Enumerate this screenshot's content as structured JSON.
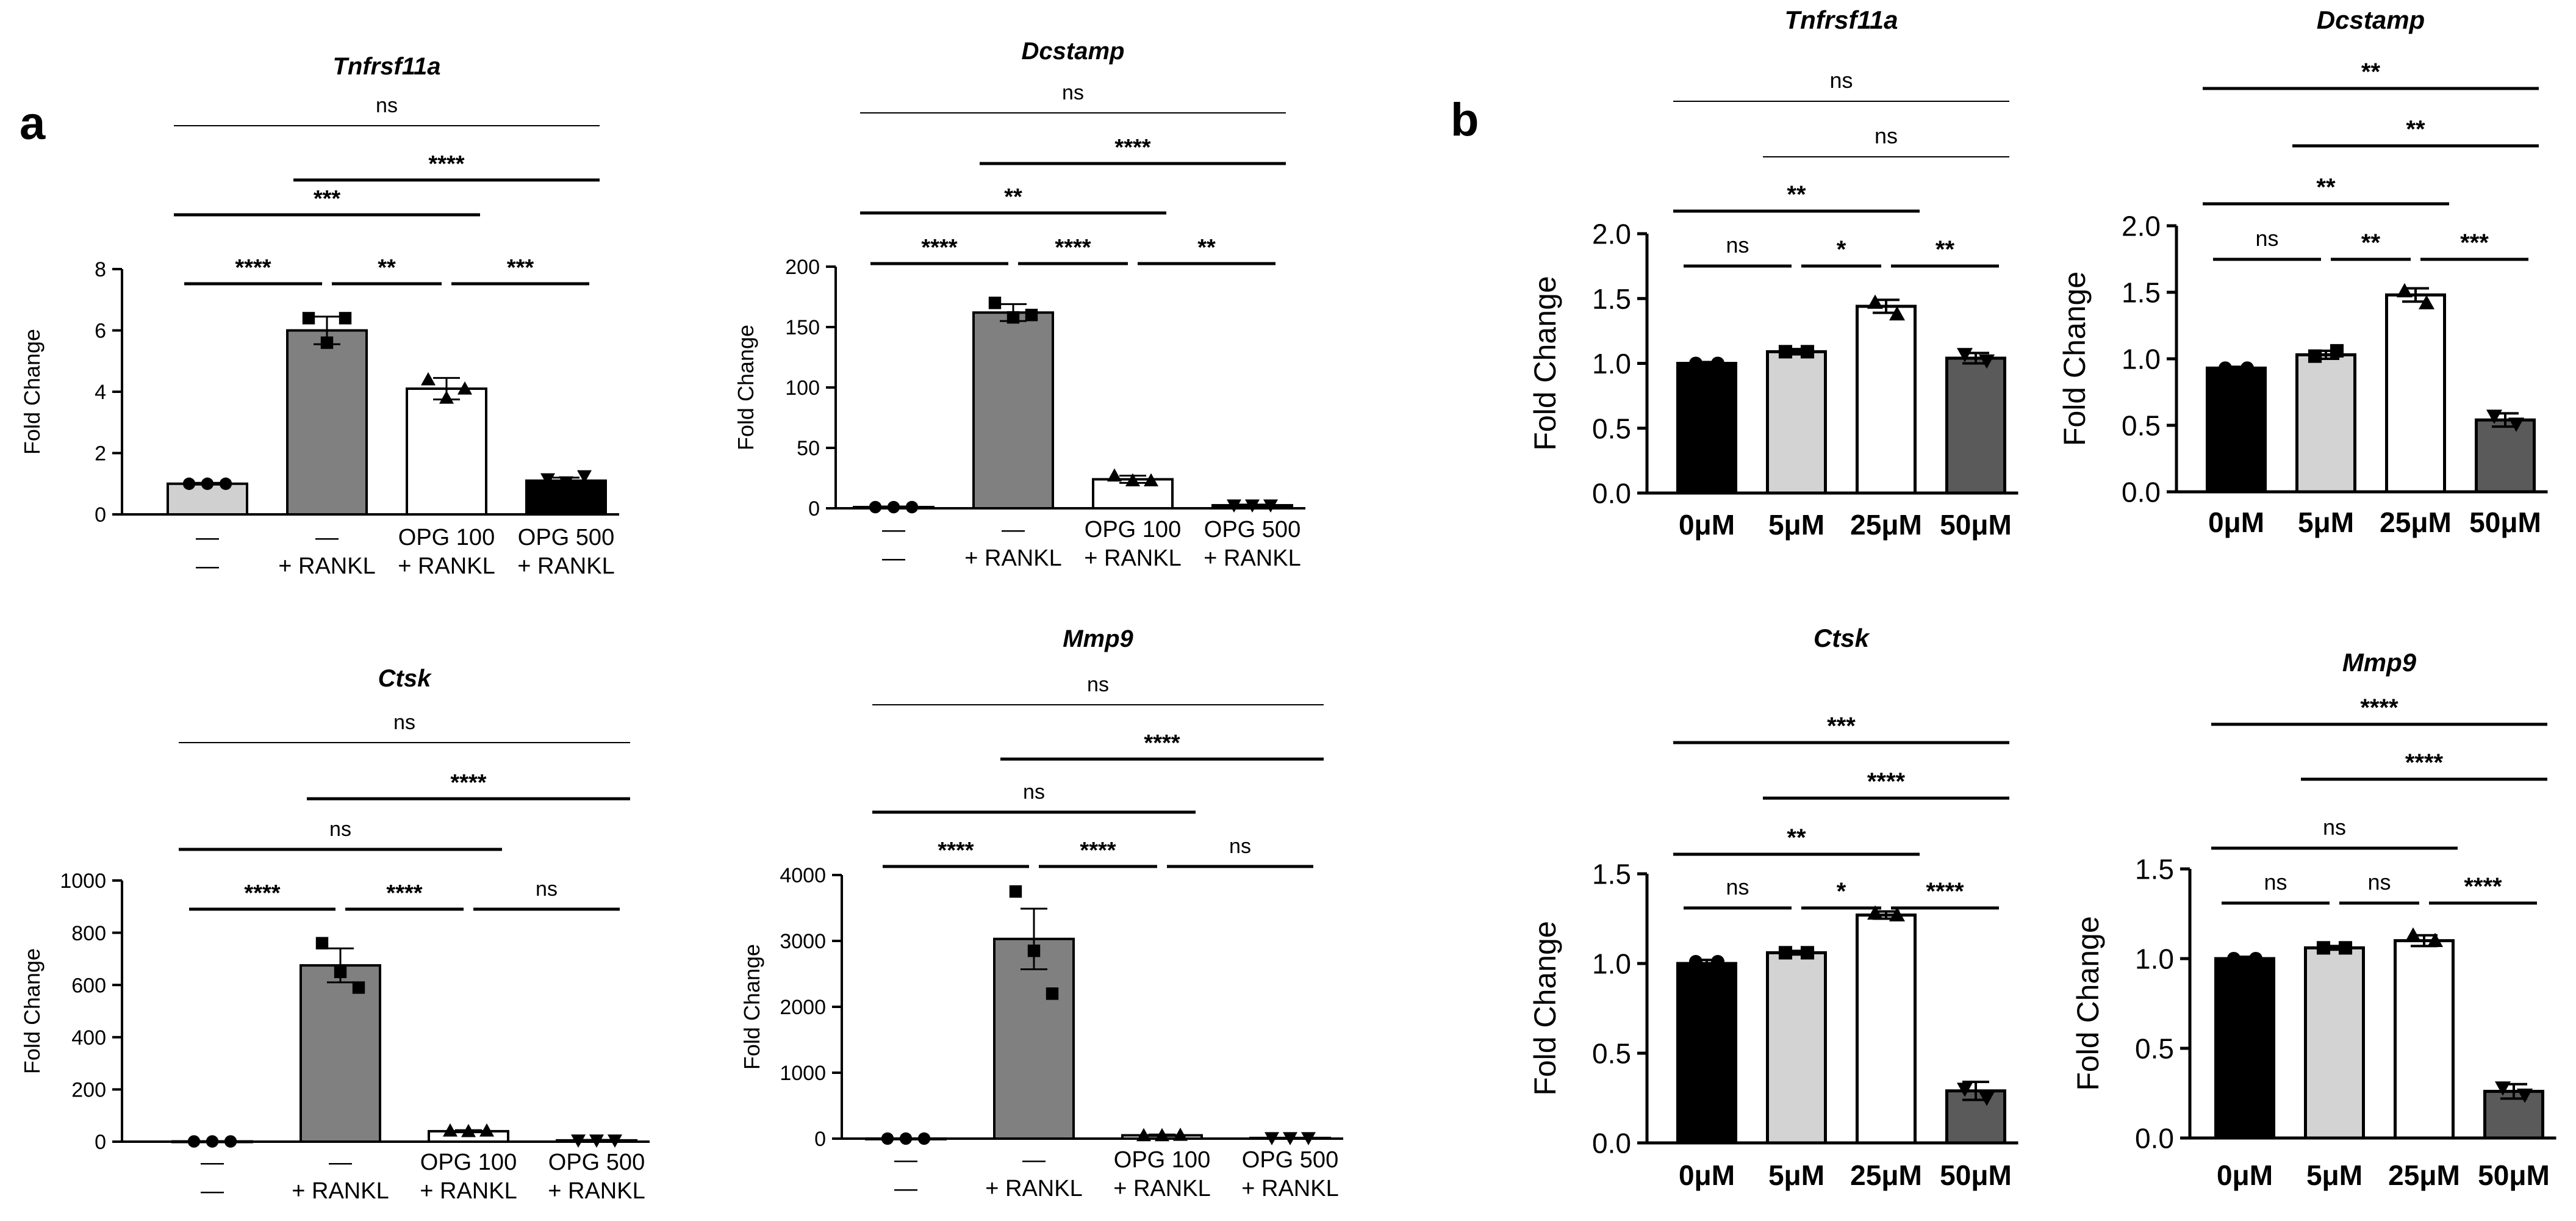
{
  "panel_labels": [
    "a",
    "b"
  ],
  "chart_data": [
    {
      "panel": "a",
      "type": "bar",
      "title": "Tnfrsf11a",
      "ylabel": "Fold Change",
      "ylim": [
        0,
        8
      ],
      "yticks": [
        "0",
        "2",
        "4",
        "6",
        "8"
      ],
      "categories": [
        [
          "—",
          "—"
        ],
        [
          "—",
          "+ RANKL"
        ],
        [
          "OPG 100",
          "+ RANKL"
        ],
        [
          "OPG 500",
          "+ RANKL"
        ]
      ],
      "values": [
        1.0,
        6.0,
        4.1,
        1.1
      ],
      "errors": [
        0.03,
        0.45,
        0.35,
        0.1
      ],
      "points": [
        [
          1.0,
          1.0,
          1.0
        ],
        [
          6.4,
          5.6,
          6.4
        ],
        [
          4.4,
          3.8,
          4.1
        ],
        [
          1.15,
          1.05,
          1.25
        ]
      ],
      "markers": [
        "circle",
        "square",
        "triangle",
        "triangle-down"
      ],
      "colors": [
        "#d0d0d0",
        "#808080",
        "#ffffff",
        "#000000"
      ],
      "comparisons": [
        {
          "from": 0,
          "to": 1,
          "label": "****"
        },
        {
          "from": 1,
          "to": 2,
          "label": "**"
        },
        {
          "from": 2,
          "to": 3,
          "label": "***"
        },
        {
          "from": 0,
          "to": 2,
          "label": "***"
        },
        {
          "from": 1,
          "to": 3,
          "label": "****"
        },
        {
          "from": 0,
          "to": 3,
          "label": "ns"
        }
      ]
    },
    {
      "panel": "a",
      "type": "bar",
      "title": "Dcstamp",
      "ylabel": "Fold Change",
      "ylim": [
        0,
        200
      ],
      "yticks": [
        "0",
        "50",
        "100",
        "150",
        "200"
      ],
      "categories": [
        [
          "—",
          "—"
        ],
        [
          "—",
          "+ RANKL"
        ],
        [
          "OPG 100",
          "+ RANKL"
        ],
        [
          "OPG 500",
          "+ RANKL"
        ]
      ],
      "values": [
        1.0,
        162,
        24,
        2.5
      ],
      "errors": [
        0.5,
        7,
        3,
        0.6
      ],
      "points": [
        [
          1.0,
          1.0,
          1.0
        ],
        [
          170,
          158,
          160
        ],
        [
          27,
          23,
          23
        ],
        [
          2.5,
          2.5,
          2.5
        ]
      ],
      "markers": [
        "circle",
        "square",
        "triangle",
        "triangle-down"
      ],
      "colors": [
        "#d0d0d0",
        "#808080",
        "#ffffff",
        "#000000"
      ],
      "comparisons": [
        {
          "from": 0,
          "to": 1,
          "label": "****"
        },
        {
          "from": 1,
          "to": 2,
          "label": "****"
        },
        {
          "from": 2,
          "to": 3,
          "label": "**"
        },
        {
          "from": 0,
          "to": 2,
          "label": "**"
        },
        {
          "from": 1,
          "to": 3,
          "label": "****"
        },
        {
          "from": 0,
          "to": 3,
          "label": "ns"
        }
      ]
    },
    {
      "panel": "a",
      "type": "bar",
      "title": "Ctsk",
      "ylabel": "Fold Change",
      "ylim": [
        0,
        1000
      ],
      "yticks": [
        "0",
        "200",
        "400",
        "600",
        "800",
        "1000"
      ],
      "categories": [
        [
          "—",
          "—"
        ],
        [
          "—",
          "+ RANKL"
        ],
        [
          "OPG 100",
          "+ RANKL"
        ],
        [
          "OPG 500",
          "+ RANKL"
        ]
      ],
      "values": [
        1.0,
        675,
        40,
        5
      ],
      "errors": [
        1,
        65,
        4,
        2
      ],
      "points": [
        [
          1.0,
          1.0,
          1.0
        ],
        [
          760,
          650,
          590
        ],
        [
          42,
          40,
          42
        ],
        [
          5,
          5,
          5
        ]
      ],
      "markers": [
        "circle",
        "square",
        "triangle",
        "triangle-down"
      ],
      "colors": [
        "#d0d0d0",
        "#808080",
        "#ffffff",
        "#000000"
      ],
      "comparisons": [
        {
          "from": 0,
          "to": 1,
          "label": "****"
        },
        {
          "from": 1,
          "to": 2,
          "label": "****"
        },
        {
          "from": 2,
          "to": 3,
          "label": "ns"
        },
        {
          "from": 0,
          "to": 2,
          "label": "ns"
        },
        {
          "from": 1,
          "to": 3,
          "label": "****"
        },
        {
          "from": 0,
          "to": 3,
          "label": "ns"
        }
      ]
    },
    {
      "panel": "a",
      "type": "bar",
      "title": "Mmp9",
      "ylabel": "Fold Change",
      "ylim": [
        0,
        4000
      ],
      "yticks": [
        "0",
        "1000",
        "2000",
        "3000",
        "4000"
      ],
      "categories": [
        [
          "—",
          "—"
        ],
        [
          "—",
          "+ RANKL"
        ],
        [
          "OPG 100",
          "+ RANKL"
        ],
        [
          "OPG 500",
          "+ RANKL"
        ]
      ],
      "values": [
        1.0,
        3030,
        50,
        10
      ],
      "errors": [
        2,
        460,
        12,
        4
      ],
      "points": [
        [
          1.0,
          1.0,
          1.0
        ],
        [
          3750,
          2850,
          2200
        ],
        [
          50,
          50,
          55
        ],
        [
          10,
          10,
          10
        ]
      ],
      "markers": [
        "circle",
        "square",
        "triangle",
        "triangle-down"
      ],
      "colors": [
        "#d0d0d0",
        "#808080",
        "#ffffff",
        "#000000"
      ],
      "comparisons": [
        {
          "from": 0,
          "to": 1,
          "label": "****"
        },
        {
          "from": 1,
          "to": 2,
          "label": "****"
        },
        {
          "from": 2,
          "to": 3,
          "label": "ns"
        },
        {
          "from": 0,
          "to": 2,
          "label": "ns"
        },
        {
          "from": 1,
          "to": 3,
          "label": "****"
        },
        {
          "from": 0,
          "to": 3,
          "label": "ns"
        }
      ]
    },
    {
      "panel": "b",
      "type": "bar",
      "title": "Tnfrsf11a",
      "ylabel": "Fold  Change",
      "ylim": [
        0,
        2.0
      ],
      "yticks": [
        "0.0",
        "0.5",
        "1.0",
        "1.5",
        "2.0"
      ],
      "categories": [
        [
          "0μM"
        ],
        [
          "5μM"
        ],
        [
          "25μM"
        ],
        [
          "50μM"
        ]
      ],
      "values": [
        1.0,
        1.09,
        1.44,
        1.04
      ],
      "errors": [
        0.01,
        0.02,
        0.05,
        0.04
      ],
      "points": [
        [
          1.0,
          1.0
        ],
        [
          1.09,
          1.09
        ],
        [
          1.47,
          1.38
        ],
        [
          1.07,
          1.02
        ]
      ],
      "markers": [
        "circle",
        "square",
        "triangle",
        "triangle-down"
      ],
      "colors": [
        "#000000",
        "#d3d3d3",
        "#ffffff",
        "#5a5a5a"
      ],
      "comparisons": [
        {
          "from": 0,
          "to": 1,
          "label": "ns"
        },
        {
          "from": 1,
          "to": 2,
          "label": "*"
        },
        {
          "from": 2,
          "to": 3,
          "label": "**"
        },
        {
          "from": 0,
          "to": 2,
          "label": "**"
        },
        {
          "from": 1,
          "to": 3,
          "label": "ns"
        },
        {
          "from": 0,
          "to": 3,
          "label": "ns"
        }
      ]
    },
    {
      "panel": "b",
      "type": "bar",
      "title": "Dcstamp",
      "ylabel": "Fold  Change",
      "ylim": [
        0,
        2.0
      ],
      "yticks": [
        "0.0",
        "0.5",
        "1.0",
        "1.5",
        "2.0"
      ],
      "categories": [
        [
          "0μM"
        ],
        [
          "5μM"
        ],
        [
          "25μM"
        ],
        [
          "50μM"
        ]
      ],
      "values": [
        0.93,
        1.03,
        1.48,
        0.54
      ],
      "errors": [
        0.01,
        0.03,
        0.05,
        0.05
      ],
      "points": [
        [
          0.93,
          0.93
        ],
        [
          1.02,
          1.06
        ],
        [
          1.51,
          1.42
        ],
        [
          0.57,
          0.51
        ]
      ],
      "markers": [
        "circle",
        "square",
        "triangle",
        "triangle-down"
      ],
      "colors": [
        "#000000",
        "#d3d3d3",
        "#ffffff",
        "#5a5a5a"
      ],
      "comparisons": [
        {
          "from": 0,
          "to": 1,
          "label": "ns"
        },
        {
          "from": 1,
          "to": 2,
          "label": "**"
        },
        {
          "from": 2,
          "to": 3,
          "label": "***"
        },
        {
          "from": 0,
          "to": 2,
          "label": "**"
        },
        {
          "from": 1,
          "to": 3,
          "label": "**"
        },
        {
          "from": 0,
          "to": 3,
          "label": "**"
        }
      ]
    },
    {
      "panel": "b",
      "type": "bar",
      "title": "Ctsk",
      "ylabel": "Fold  Change",
      "ylim": [
        0,
        1.5
      ],
      "yticks": [
        "0.0",
        "0.5",
        "1.0",
        "1.5"
      ],
      "categories": [
        [
          "0μM"
        ],
        [
          "5μM"
        ],
        [
          "25μM"
        ],
        [
          "50μM"
        ]
      ],
      "values": [
        1.0,
        1.06,
        1.27,
        0.29
      ],
      "errors": [
        0.02,
        0.01,
        0.02,
        0.05
      ],
      "points": [
        [
          1.01,
          1.01
        ],
        [
          1.06,
          1.06
        ],
        [
          1.28,
          1.27
        ],
        [
          0.3,
          0.25
        ]
      ],
      "markers": [
        "circle",
        "square",
        "triangle",
        "triangle-down"
      ],
      "colors": [
        "#000000",
        "#d3d3d3",
        "#ffffff",
        "#5a5a5a"
      ],
      "comparisons": [
        {
          "from": 0,
          "to": 1,
          "label": "ns"
        },
        {
          "from": 1,
          "to": 2,
          "label": "*"
        },
        {
          "from": 2,
          "to": 3,
          "label": "****"
        },
        {
          "from": 0,
          "to": 2,
          "label": "**"
        },
        {
          "from": 1,
          "to": 3,
          "label": "****"
        },
        {
          "from": 0,
          "to": 3,
          "label": "***"
        }
      ]
    },
    {
      "panel": "b",
      "type": "bar",
      "title": "Mmp9",
      "ylabel": "Fold  Change",
      "ylim": [
        0,
        1.5
      ],
      "yticks": [
        "0.0",
        "0.5",
        "1.0",
        "1.5"
      ],
      "categories": [
        [
          "0μM"
        ],
        [
          "5μM"
        ],
        [
          "25μM"
        ],
        [
          "50μM"
        ]
      ],
      "values": [
        1.0,
        1.06,
        1.1,
        0.26
      ],
      "errors": [
        0.01,
        0.01,
        0.03,
        0.04
      ],
      "points": [
        [
          1.0,
          1.0
        ],
        [
          1.06,
          1.06
        ],
        [
          1.13,
          1.1
        ],
        [
          0.28,
          0.24
        ]
      ],
      "markers": [
        "circle",
        "square",
        "triangle",
        "triangle-down"
      ],
      "colors": [
        "#000000",
        "#d3d3d3",
        "#ffffff",
        "#5a5a5a"
      ],
      "comparisons": [
        {
          "from": 0,
          "to": 1,
          "label": "ns"
        },
        {
          "from": 1,
          "to": 2,
          "label": "ns"
        },
        {
          "from": 2,
          "to": 3,
          "label": "****"
        },
        {
          "from": 0,
          "to": 2,
          "label": "ns"
        },
        {
          "from": 1,
          "to": 3,
          "label": "****"
        },
        {
          "from": 0,
          "to": 3,
          "label": "****"
        }
      ]
    }
  ]
}
